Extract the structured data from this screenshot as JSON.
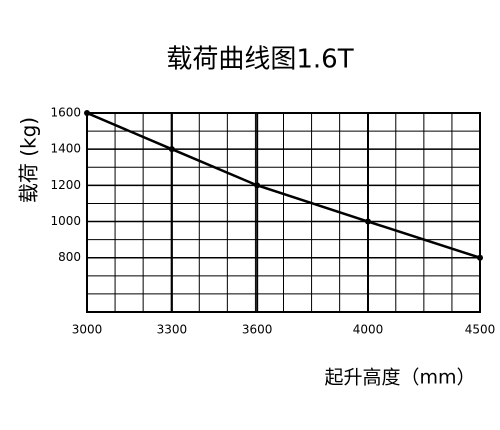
{
  "chart_data": {
    "type": "line",
    "title": "载荷曲线图1.6T",
    "x_label": "起升高度（mm）",
    "y_label": "载荷 (kg)",
    "x": [
      3000,
      3300,
      3600,
      4000,
      4500
    ],
    "series": [
      {
        "color": "#000000",
        "values": [
          1600,
          1400,
          1200,
          1000,
          800
        ]
      }
    ],
    "xticks": [
      3000,
      3300,
      3600,
      4000,
      4500
    ],
    "ylim": [
      500,
      1600
    ],
    "yticks": [
      800,
      1000,
      1200,
      1400,
      1600
    ],
    "grid": true
  }
}
